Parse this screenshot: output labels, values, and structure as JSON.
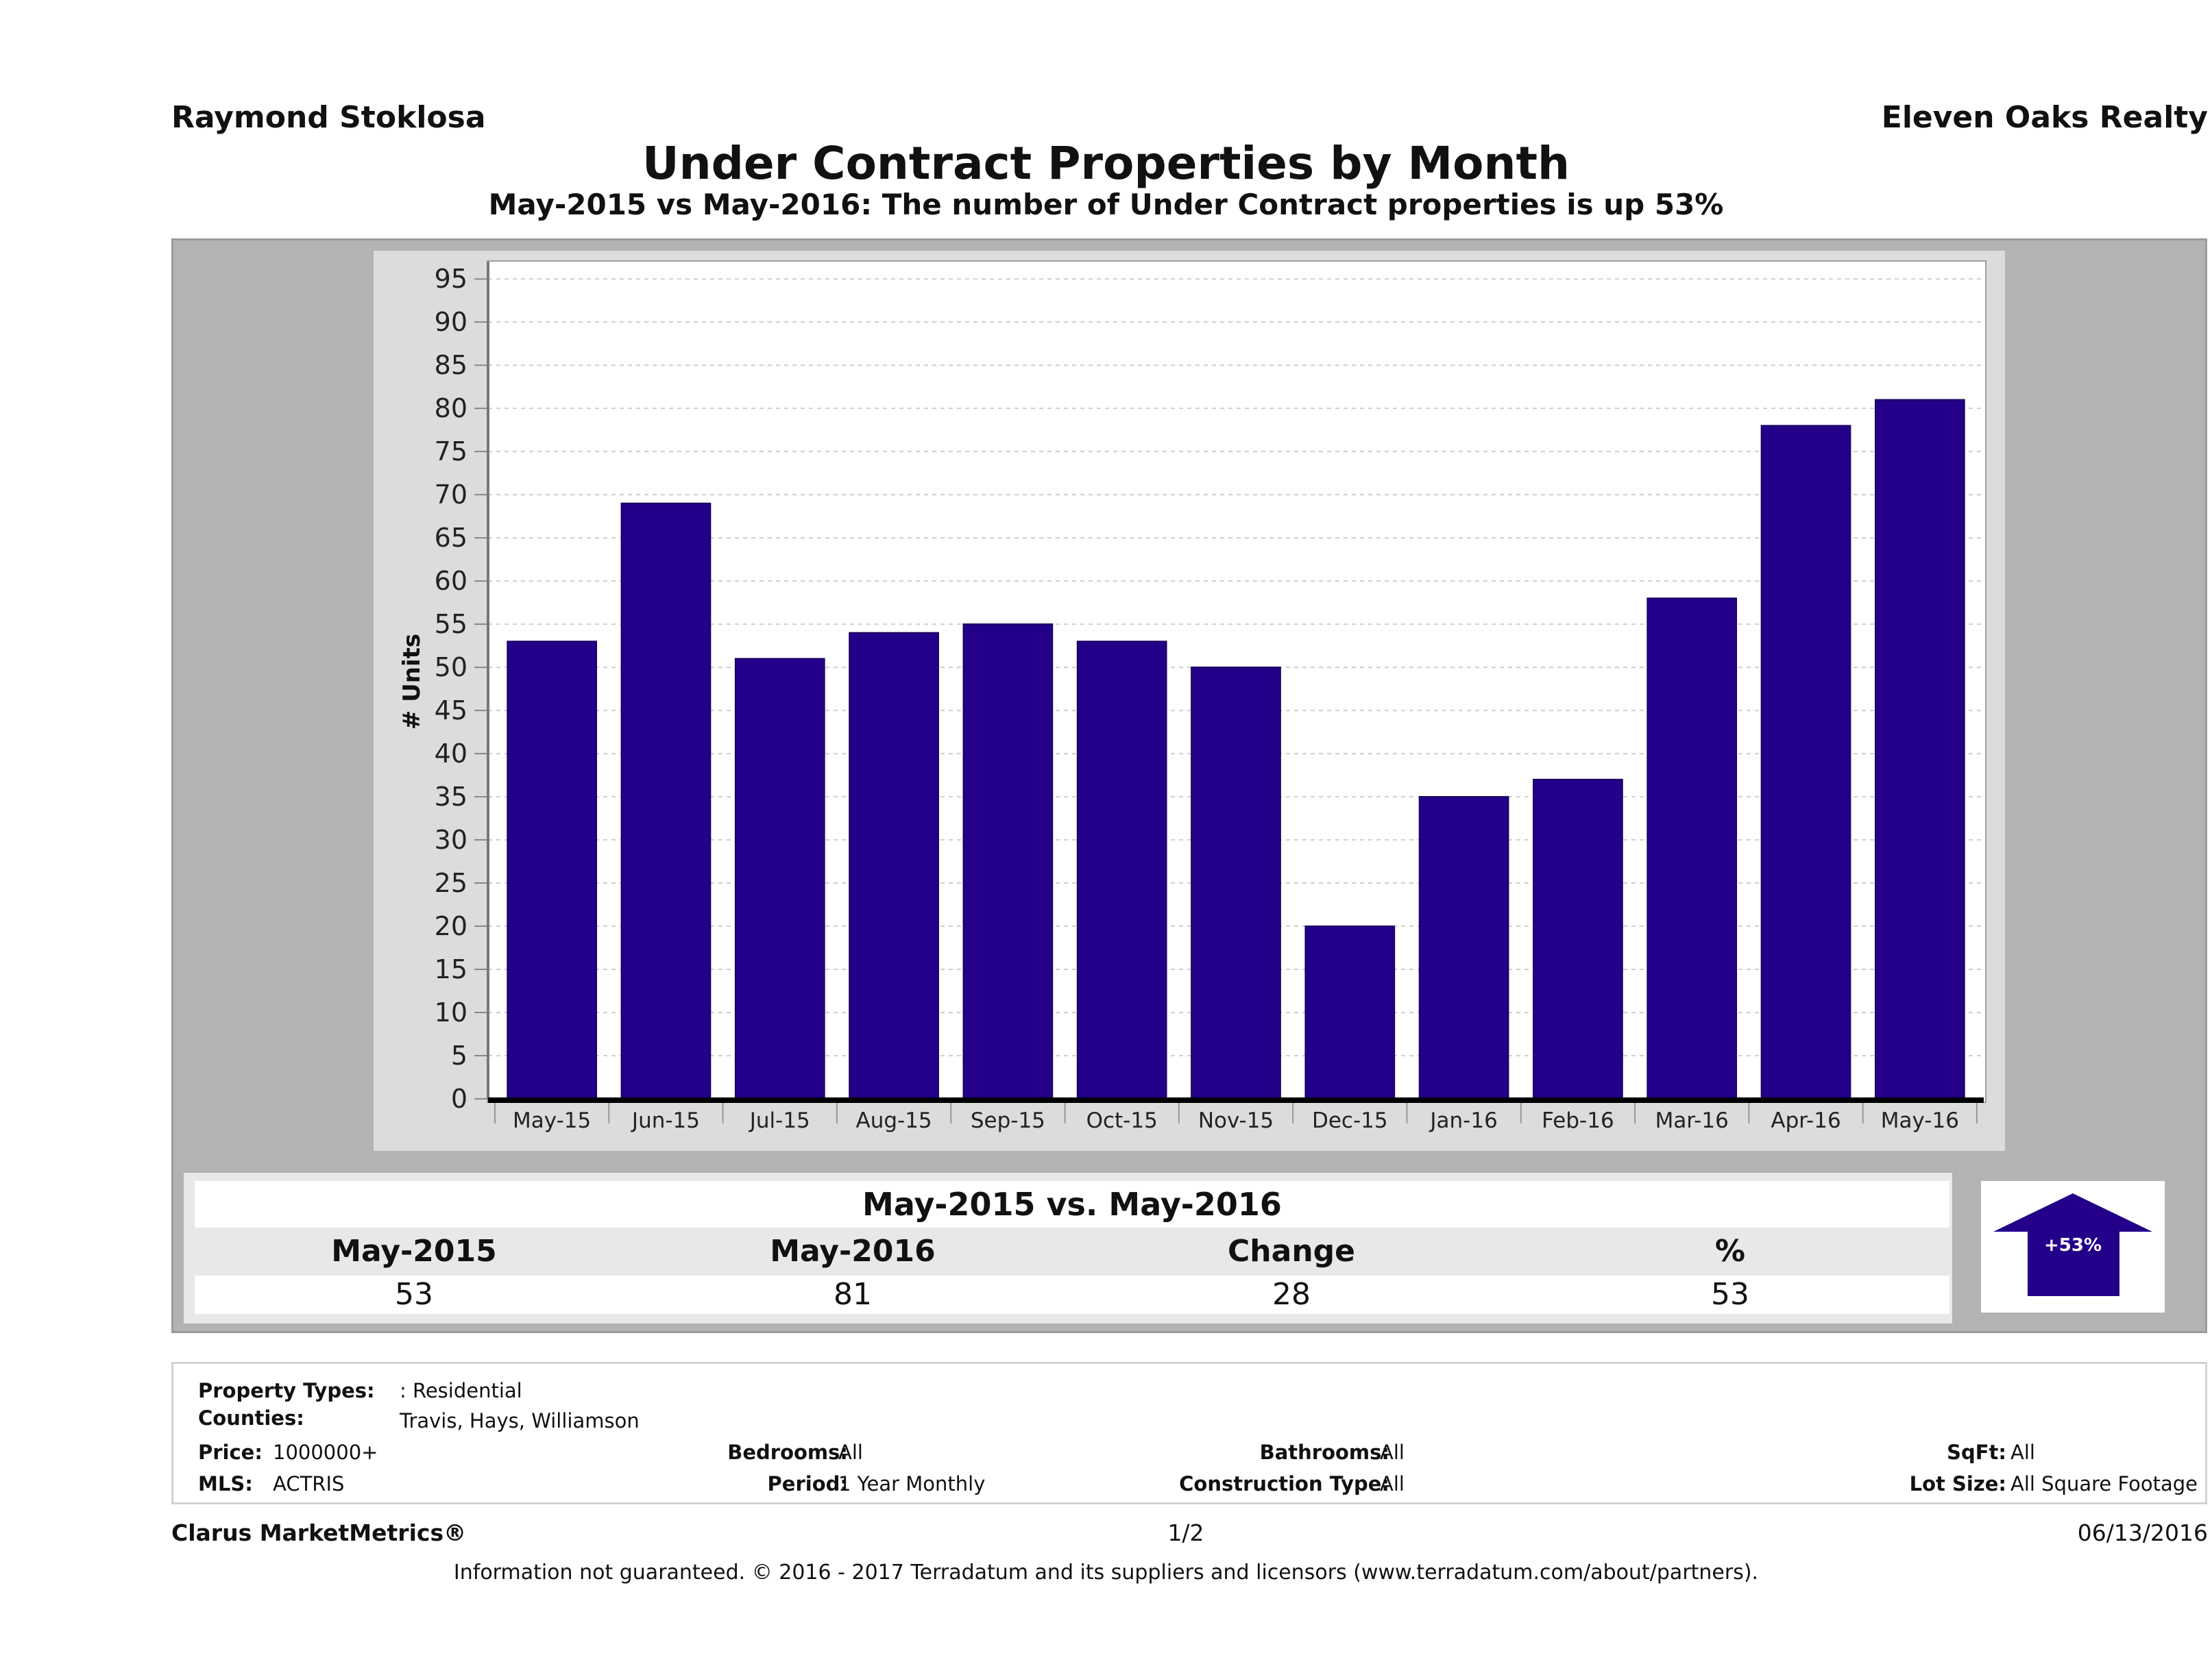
{
  "header": {
    "agent": "Raymond Stoklosa",
    "brokerage": "Eleven Oaks Realty",
    "title": "Under Contract Properties by Month",
    "subtitle": "May-2015 vs May-2016: The number of Under Contract  properties is up 53%"
  },
  "chart_data": {
    "type": "bar",
    "title": "Under Contract Properties by Month",
    "subtitle": "May-2015 vs May-2016: The number of Under Contract  properties is up 53%",
    "xlabel": "",
    "ylabel": "# Units",
    "categories": [
      "May-15",
      "Jun-15",
      "Jul-15",
      "Aug-15",
      "Sep-15",
      "Oct-15",
      "Nov-15",
      "Dec-15",
      "Jan-16",
      "Feb-16",
      "Mar-16",
      "Apr-16",
      "May-16"
    ],
    "values": [
      53,
      69,
      51,
      54,
      55,
      53,
      50,
      20,
      35,
      37,
      58,
      78,
      81
    ],
    "ylim": [
      0,
      97
    ],
    "yticks": [
      0,
      5,
      10,
      15,
      20,
      25,
      30,
      35,
      40,
      45,
      50,
      55,
      60,
      65,
      70,
      75,
      80,
      85,
      90,
      95
    ],
    "grid": true,
    "legend": "none",
    "bar_color": "#24008a"
  },
  "comparison": {
    "title": "May-2015 vs. May-2016",
    "headers": [
      "May-2015",
      "May-2016",
      "Change",
      "%"
    ],
    "values": [
      "53",
      "81",
      "28",
      "53"
    ],
    "badge": "+53%",
    "badge_icon": "up-arrow-icon",
    "badge_color": "#24008a"
  },
  "filters": {
    "property_types_label": "Property Types:",
    "property_types_value": ": Residential",
    "counties_label": "Counties:",
    "counties_value": "Travis, Hays, Williamson",
    "price_label": "Price:",
    "price_value": "1000000+",
    "mls_label": "MLS:",
    "mls_value": "ACTRIS",
    "bedrooms_label": "Bedrooms:",
    "bedrooms_value": "All",
    "period_label": "Period:",
    "period_value": "1 Year Monthly",
    "bathrooms_label": "Bathrooms:",
    "bathrooms_value": "All",
    "construction_label": "Construction Type:",
    "construction_value": "All",
    "sqft_label": "SqFt:",
    "sqft_value": "All",
    "lotsize_label": "Lot Size:",
    "lotsize_value": "All Square Footage"
  },
  "footer": {
    "brand": "Clarus MarketMetrics®",
    "page": "1/2",
    "date": "06/13/2016",
    "disclaimer": "Information not guaranteed. © 2016 - 2017 Terradatum and its suppliers and licensors (www.terradatum.com/about/partners)."
  }
}
